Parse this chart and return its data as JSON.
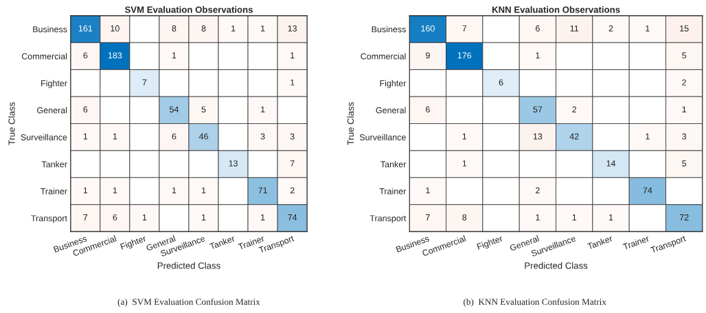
{
  "chart_data": [
    {
      "type": "heatmap",
      "title": "SVM Evaluation Observations",
      "xlabel": "Predicted Class",
      "ylabel": "True Class",
      "categories": [
        "Business",
        "Commercial",
        "Fighter",
        "General",
        "Surveillance",
        "Tanker",
        "Trainer",
        "Transport"
      ],
      "y_categories": [
        "Business",
        "Commercial",
        "Fighter",
        "General",
        "Surveillance",
        "Tanker",
        "Trainer",
        "Transport"
      ],
      "cells": [
        [
          161,
          10,
          null,
          8,
          8,
          1,
          1,
          13
        ],
        [
          6,
          183,
          null,
          1,
          null,
          null,
          null,
          1
        ],
        [
          null,
          null,
          7,
          null,
          null,
          null,
          null,
          1
        ],
        [
          6,
          null,
          null,
          54,
          5,
          null,
          1,
          null
        ],
        [
          1,
          1,
          null,
          6,
          46,
          null,
          3,
          3
        ],
        [
          null,
          null,
          null,
          null,
          null,
          13,
          null,
          7
        ],
        [
          1,
          1,
          null,
          1,
          1,
          null,
          71,
          2
        ],
        [
          7,
          6,
          1,
          null,
          1,
          null,
          1,
          74
        ]
      ],
      "data_labels": true,
      "annotations": [
        "(a)  SVM Evaluation Confusion Matrix"
      ]
    },
    {
      "type": "heatmap",
      "title": "KNN Evaluation Observations",
      "xlabel": "Predicted Class",
      "ylabel": "True Class",
      "categories": [
        "Business",
        "Commercial",
        "Fighter",
        "General",
        "Surveillance",
        "Tanker",
        "Trainer",
        "Transport"
      ],
      "y_categories": [
        "Business",
        "Commercial",
        "Fighter",
        "General",
        "Surveillance",
        "Tanker",
        "Trainer",
        "Transport"
      ],
      "cells": [
        [
          160,
          7,
          null,
          6,
          11,
          2,
          1,
          15
        ],
        [
          9,
          176,
          null,
          1,
          null,
          null,
          null,
          5
        ],
        [
          null,
          null,
          6,
          null,
          null,
          null,
          null,
          2
        ],
        [
          6,
          null,
          null,
          57,
          2,
          null,
          null,
          1
        ],
        [
          null,
          1,
          null,
          13,
          42,
          null,
          1,
          3
        ],
        [
          null,
          1,
          null,
          null,
          null,
          14,
          null,
          5
        ],
        [
          1,
          null,
          null,
          2,
          null,
          null,
          74,
          null
        ],
        [
          7,
          8,
          null,
          1,
          1,
          1,
          null,
          72
        ]
      ],
      "data_labels": true,
      "annotations": [
        "(b)  KNN Evaluation Confusion Matrix"
      ]
    }
  ]
}
